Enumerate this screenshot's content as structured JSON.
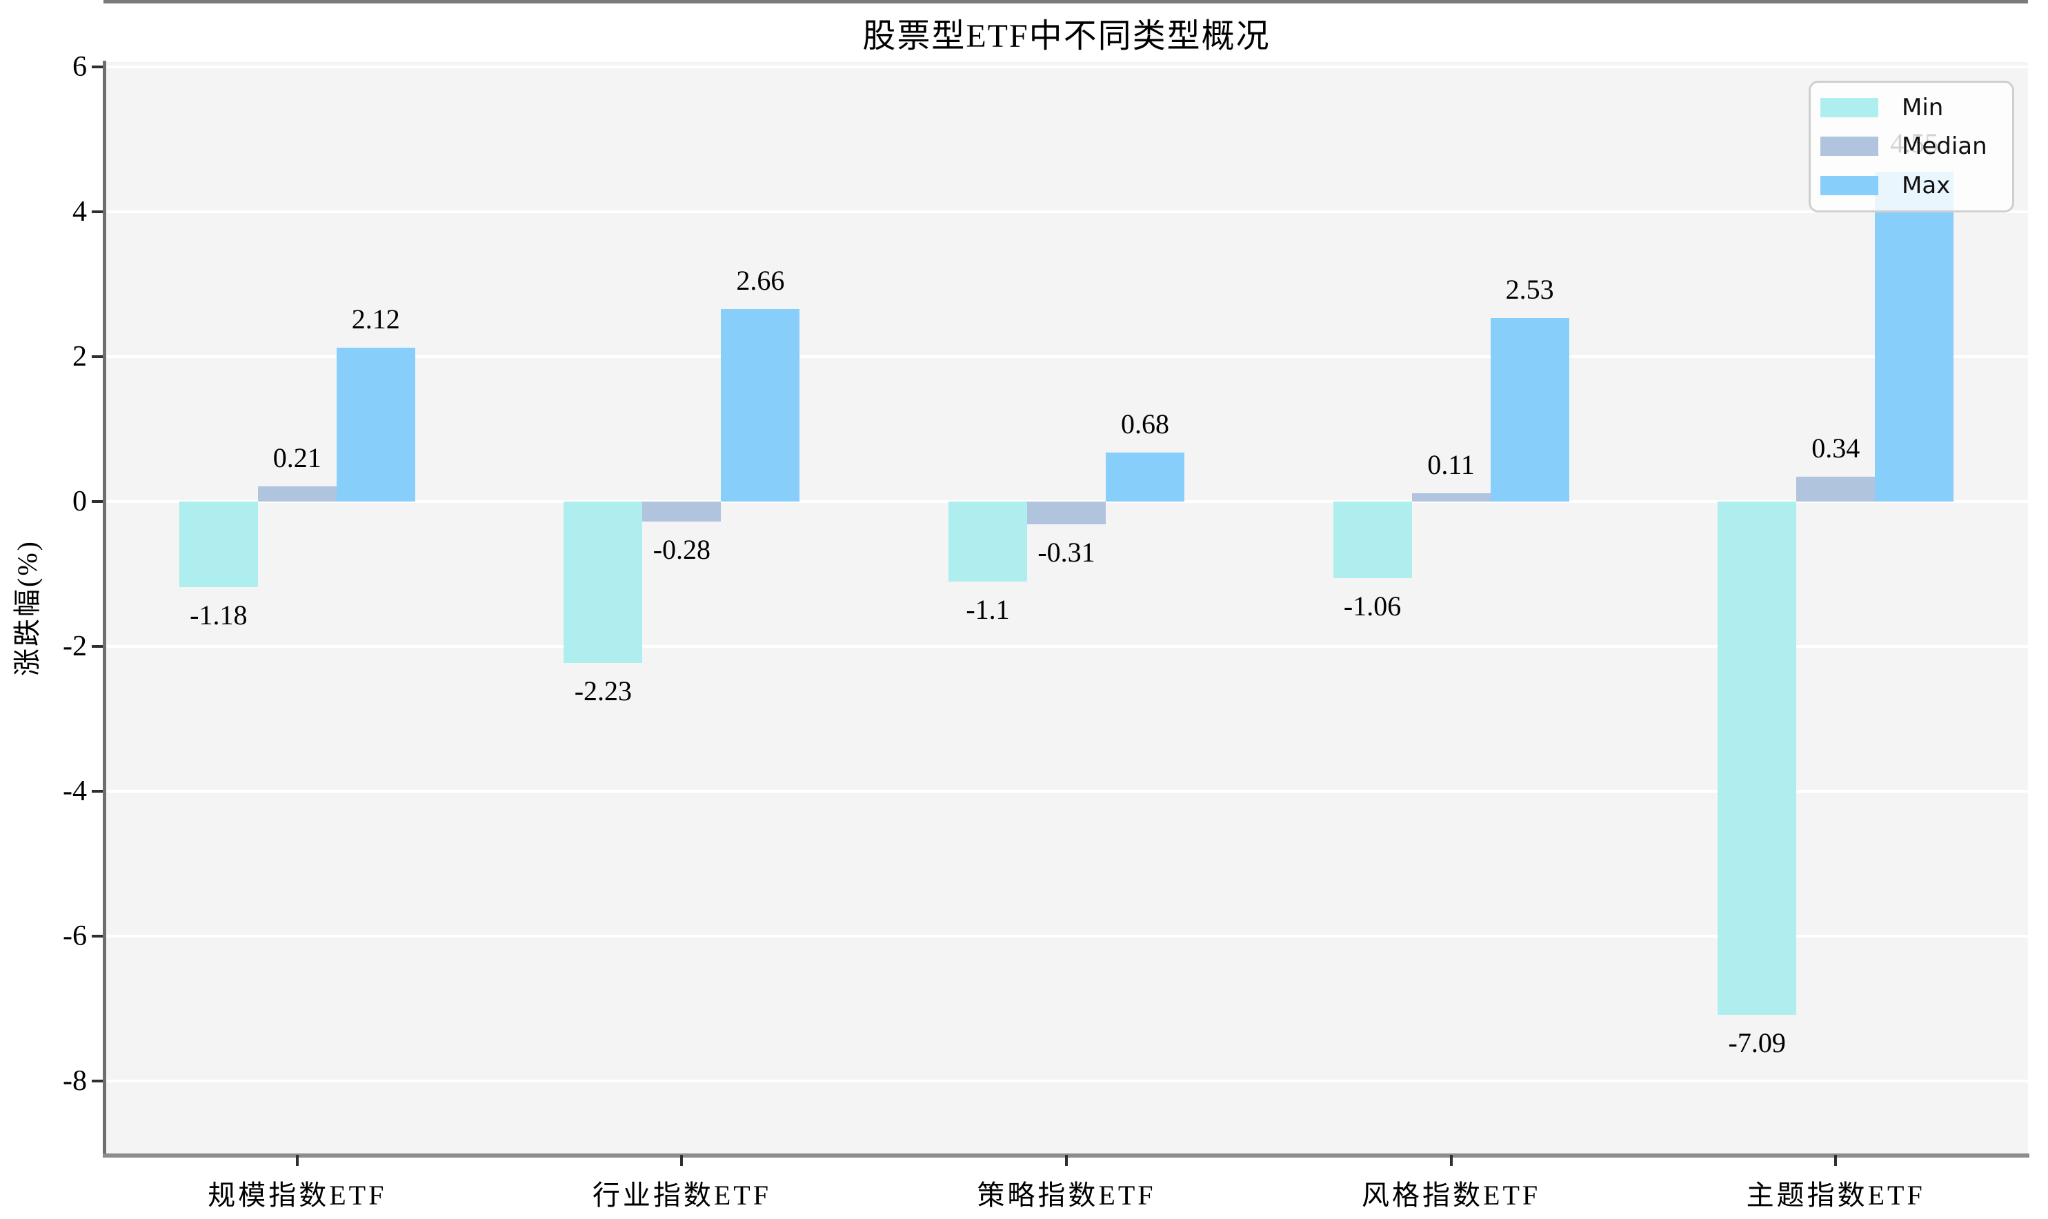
{
  "chart_data": {
    "type": "bar",
    "title": "股票型ETF中不同类型概况",
    "xlabel": "",
    "ylabel": "涨跌幅(%)",
    "categories": [
      "规模指数ETF",
      "行业指数ETF",
      "策略指数ETF",
      "风格指数ETF",
      "主题指数ETF"
    ],
    "series": [
      {
        "name": "Min",
        "color": "#AFEEEE",
        "values": [
          -1.18,
          -2.23,
          -1.1,
          -1.06,
          -7.09
        ]
      },
      {
        "name": "Median",
        "color": "#B0C4DE",
        "values": [
          0.21,
          -0.28,
          -0.31,
          0.11,
          0.34
        ]
      },
      {
        "name": "Max",
        "color": "#87CEFA",
        "values": [
          2.12,
          2.66,
          0.68,
          2.53,
          4.55
        ]
      }
    ],
    "yticks": [
      6,
      4,
      2,
      0,
      -2,
      -4,
      -6,
      -8
    ],
    "ylim": [
      -9.0,
      6.07
    ],
    "grid": true,
    "grid_color": "#ffffff",
    "plot_background": "#f4f4f5",
    "zero_line_color": "#7a7a7a",
    "legend_position": "upper right",
    "bar_value_labels": true
  }
}
